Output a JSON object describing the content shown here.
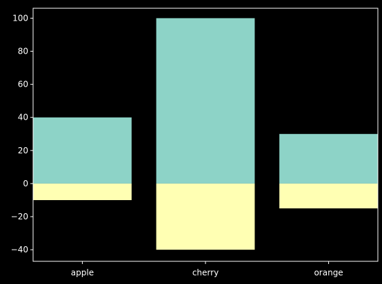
{
  "chart_data": {
    "type": "bar",
    "stacking": "diverging",
    "categories": [
      "apple",
      "cherry",
      "orange"
    ],
    "series": [
      {
        "values": [
          40,
          100,
          30
        ],
        "color": "#8dd3c7"
      },
      {
        "values": [
          -10,
          -40,
          -15
        ],
        "color": "#ffffb3"
      }
    ],
    "ylim": [
      -47,
      106
    ],
    "yticks": [
      -40,
      -20,
      0,
      20,
      40,
      60,
      80,
      100
    ],
    "ytick_labels": [
      "−40",
      "−20",
      "0",
      "20",
      "40",
      "60",
      "80",
      "100"
    ],
    "title": "",
    "xlabel": "",
    "ylabel": "",
    "grid": false,
    "legend": "none",
    "background": "#000000",
    "axis_color": "#ffffff"
  }
}
